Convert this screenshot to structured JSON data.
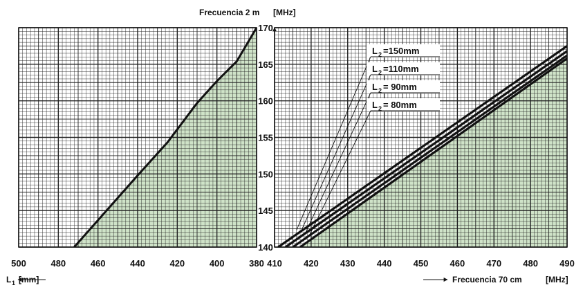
{
  "colors": {
    "fill": "#cfe3c8",
    "grid": "#222222",
    "line": "#111111"
  },
  "labels": {
    "top_title": "Frecuencia 2 m",
    "top_unit": "[MHz]",
    "left_axis_label": "L",
    "left_axis_sub": "1",
    "left_axis_unit": "[mm]",
    "right_axis_label": "Frecuencia 70 cm",
    "right_axis_unit": "[MHz]"
  },
  "chart_data": [
    {
      "type": "line",
      "x": [
        472,
        455,
        440,
        425,
        410,
        400,
        390,
        380
      ],
      "y": [
        140,
        145.2,
        149.8,
        154.3,
        159.7,
        162.7,
        165.4,
        170
      ],
      "xlabel": "L1 [mm]",
      "ylabel": "Frecuencia 2 m [MHz]",
      "xlim": [
        500,
        380
      ],
      "ylim": [
        140,
        170
      ],
      "x_ticks": [
        "500",
        "480",
        "460",
        "440",
        "420",
        "400",
        "380"
      ],
      "y_ticks": [
        "140",
        "145",
        "150",
        "155",
        "160",
        "165",
        "170"
      ],
      "grid": true,
      "fill_below": true
    },
    {
      "type": "line",
      "xlim": [
        410,
        490
      ],
      "ylim": [
        140,
        170
      ],
      "x_ticks": [
        "410",
        "420",
        "430",
        "440",
        "450",
        "460",
        "470",
        "480",
        "490"
      ],
      "y_ticks": [
        "140",
        "145",
        "150",
        "155",
        "160",
        "165",
        "170"
      ],
      "xlabel": "Frecuencia 70 cm [MHz]",
      "ylabel": "Frecuencia 2 m [MHz]",
      "grid": true,
      "fill_below": true,
      "series": [
        {
          "label_prefix": "L",
          "label_sub": "2",
          "label_value": "=150mm",
          "x": [
            411,
            490
          ],
          "y": [
            140,
            167.5
          ]
        },
        {
          "label_prefix": "L",
          "label_sub": "2",
          "label_value": "=110mm",
          "x": [
            413,
            490
          ],
          "y": [
            140,
            166.8
          ]
        },
        {
          "label_prefix": "L",
          "label_sub": "2",
          "label_value": "=  90mm",
          "x": [
            415,
            490
          ],
          "y": [
            140,
            166.2
          ]
        },
        {
          "label_prefix": "L",
          "label_sub": "2",
          "label_value": "=  80mm",
          "x": [
            417,
            490
          ],
          "y": [
            140,
            165.8
          ]
        }
      ]
    }
  ]
}
